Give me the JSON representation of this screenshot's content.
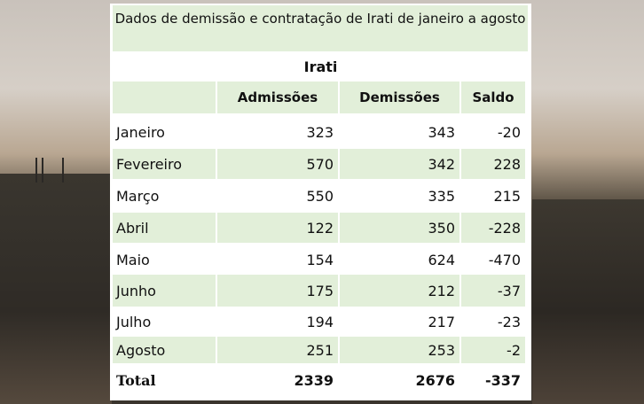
{
  "title": "Dados de demissão e contratação de Irati de janeiro a agosto",
  "chart_data": {
    "type": "table",
    "title": "Dados de demissão e contratação de Irati de janeiro a agosto",
    "region": "Irati",
    "columns": [
      "",
      "Admissões",
      "Demissões",
      "Saldo"
    ],
    "rows": [
      [
        "Janeiro",
        "323",
        "343",
        "-20"
      ],
      [
        "Fevereiro",
        "570",
        "342",
        "228"
      ],
      [
        "Março",
        "550",
        "335",
        "215"
      ],
      [
        "Abril",
        "122",
        "350",
        "-228"
      ],
      [
        "Maio",
        "154",
        "624",
        "-470"
      ],
      [
        "Junho",
        "175",
        "212",
        "-37"
      ],
      [
        "Julho",
        "194",
        "217",
        "-23"
      ],
      [
        "Agosto",
        "251",
        "253",
        "-2"
      ]
    ],
    "total": [
      "Total",
      "2339",
      "2676",
      "-337"
    ]
  },
  "colors": {
    "header_fill": "#e2efd9",
    "table_bg": "#ffffff"
  }
}
